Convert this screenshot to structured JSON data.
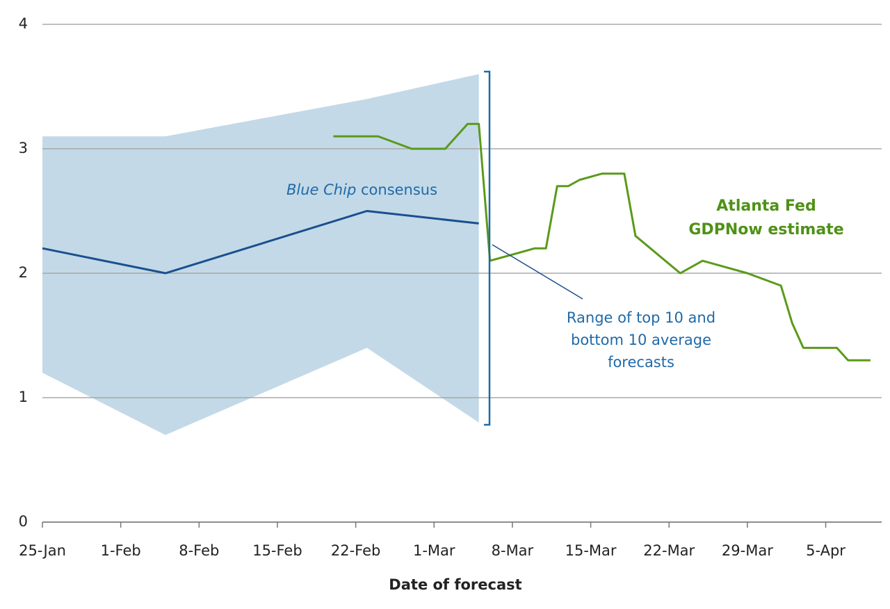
{
  "chart_data": {
    "type": "line",
    "x_label": "Date of forecast",
    "xlim": [
      25,
      100
    ],
    "xticks": [
      {
        "value": 25,
        "label": "25-Jan"
      },
      {
        "value": 32,
        "label": "1-Feb"
      },
      {
        "value": 39,
        "label": "8-Feb"
      },
      {
        "value": 46,
        "label": "15-Feb"
      },
      {
        "value": 53,
        "label": "22-Feb"
      },
      {
        "value": 60,
        "label": "1-Mar"
      },
      {
        "value": 67,
        "label": "8-Mar"
      },
      {
        "value": 74,
        "label": "15-Mar"
      },
      {
        "value": 81,
        "label": "22-Mar"
      },
      {
        "value": 88,
        "label": "29-Mar"
      },
      {
        "value": 95,
        "label": "5-Apr"
      }
    ],
    "ylim": [
      0,
      4
    ],
    "yticks": [
      0,
      1,
      2,
      3,
      4
    ],
    "grid": true,
    "band": {
      "color": "#c3d9e7",
      "x": [
        25,
        36,
        54,
        64
      ],
      "upper": [
        3.1,
        3.1,
        3.4,
        3.6
      ],
      "lower": [
        1.2,
        0.7,
        1.4,
        0.8
      ]
    },
    "series": [
      {
        "color": "#1a4f8f",
        "x": [
          25,
          36,
          54,
          64
        ],
        "values": [
          2.2,
          2.0,
          2.5,
          2.4
        ]
      },
      {
        "color": "#5a9a1a",
        "x": [
          51,
          55,
          58,
          61,
          63,
          64,
          65,
          69,
          70,
          71,
          72,
          73,
          75,
          77,
          78,
          82,
          84,
          86,
          88,
          91,
          92,
          93,
          96,
          97,
          99
        ],
        "values": [
          3.1,
          3.1,
          3.0,
          3.0,
          3.2,
          3.2,
          2.1,
          2.2,
          2.2,
          2.7,
          2.7,
          2.75,
          2.8,
          2.8,
          2.3,
          2.0,
          2.1,
          2.05,
          2.0,
          1.9,
          1.6,
          1.4,
          1.4,
          1.3,
          1.3
        ]
      }
    ],
    "annotations": {
      "consensus_italic": "Blue Chip",
      "consensus_rest": "consensus",
      "gdpnow": [
        "Atlanta Fed",
        "GDPNow estimate"
      ],
      "range": [
        "Range of top 10 and",
        "bottom 10 average",
        "forecasts"
      ]
    }
  }
}
